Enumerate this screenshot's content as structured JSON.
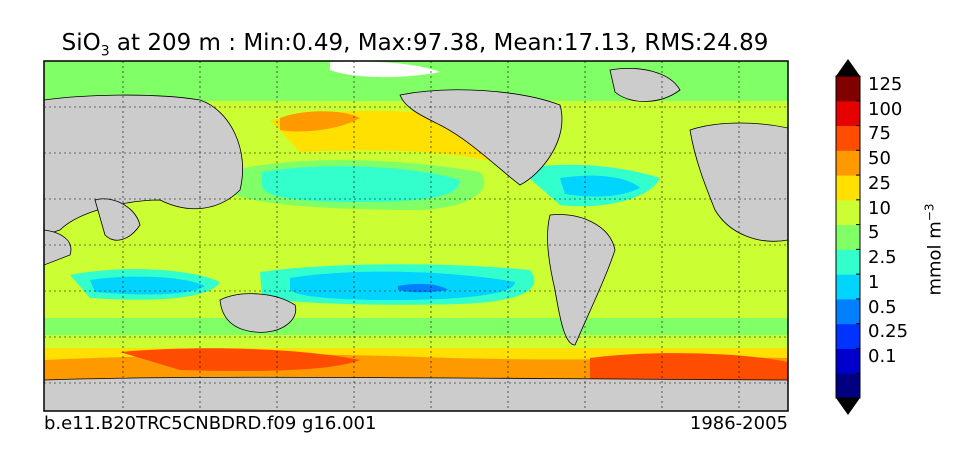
{
  "title": {
    "variable": "SiO",
    "subscript": "3",
    "rest": " at 209 m : Min:0.49, Max:97.38, Mean:17.13, RMS:24.89"
  },
  "footer": {
    "case": "b.e11.B20TRC5CNBDRD.f09 g16.001",
    "period": "1986-2005"
  },
  "colorbar": {
    "units": "mmol m",
    "units_exp": "−3",
    "levels": [
      "0.1",
      "0.25",
      "0.5",
      "1",
      "2.5",
      "5",
      "10",
      "25",
      "50",
      "75",
      "100",
      "125"
    ],
    "colors": [
      "#000080",
      "#0000cd",
      "#0033ff",
      "#0080ff",
      "#00d4ff",
      "#33ffcc",
      "#80ff66",
      "#ccff33",
      "#ffe000",
      "#ff9900",
      "#ff4d00",
      "#e60000",
      "#800000"
    ]
  },
  "colors": {
    "land": "#cccccc",
    "missing": "#ffffff"
  },
  "chart_data": {
    "type": "heatmap",
    "title": "SiO3 at 209 m : Min:0.49, Max:97.38, Mean:17.13, RMS:24.89",
    "variable": "SiO3",
    "depth": "209 m",
    "stats": {
      "min": 0.49,
      "max": 97.38,
      "mean": 17.13,
      "rms": 24.89
    },
    "units": "mmol m-3",
    "contour_levels": [
      0.1,
      0.25,
      0.5,
      1,
      2.5,
      5,
      10,
      25,
      50,
      75,
      100,
      125
    ],
    "grid": true,
    "legend_placement": "right",
    "colorbar_extend": "both"
  }
}
